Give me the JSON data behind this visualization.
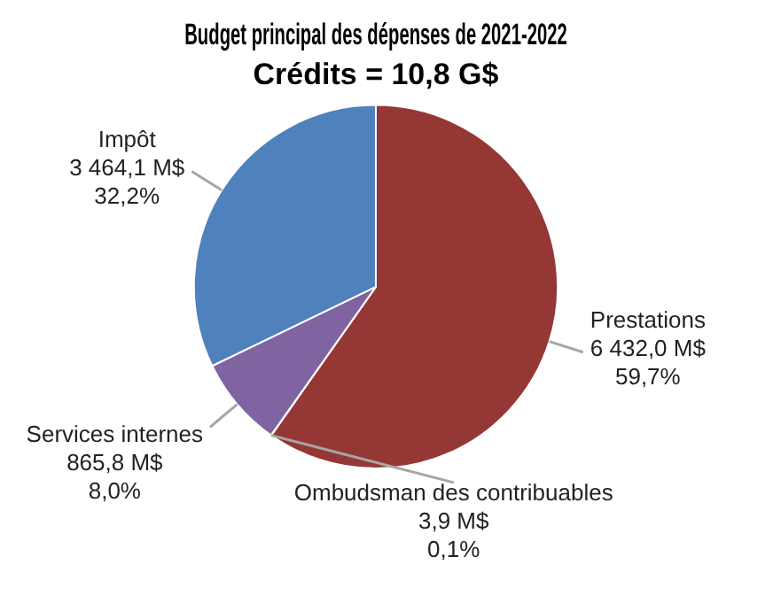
{
  "chart_data": {
    "type": "pie",
    "title": "Budget principal des dépenses de 2021-2022",
    "subtitle": "Crédits = 10,8 G$",
    "categories": [
      "Prestations",
      "Ombudsman des contribuables",
      "Services internes",
      "Impôt"
    ],
    "values": [
      6432.0,
      3.9,
      865.8,
      3464.1
    ],
    "colors": [
      "#953735",
      "#9bbb59",
      "#8064a2",
      "#4f81bd"
    ],
    "value_labels": [
      "6 432,0 M$\n59,7%",
      "3,9 M$\n0,1%",
      "865,8 M$\n8,0%",
      "3 464,1 M$\n32,2%"
    ],
    "legend": false
  }
}
